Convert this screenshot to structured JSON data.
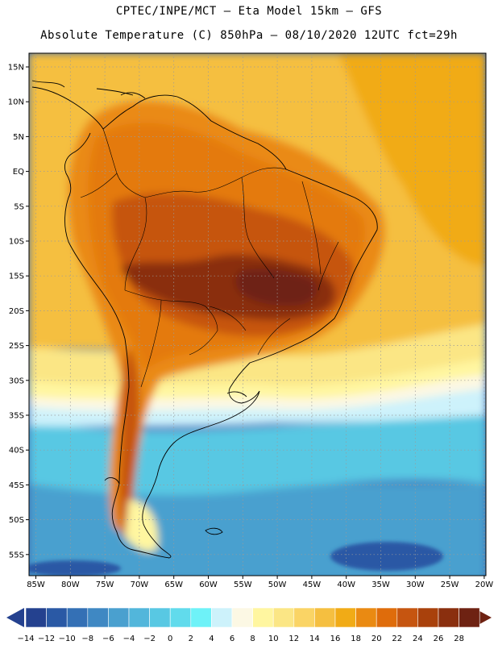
{
  "header": {
    "line1": "CPTEC/INPE/MCT –  Eta Model 15km – GFS",
    "line2": "Absolute Temperature (C) 850hPa – 08/10/2020 12UTC fct=29h"
  },
  "axes": {
    "lat_labels": [
      "15N",
      "10N",
      "5N",
      "EQ",
      "5S",
      "10S",
      "15S",
      "20S",
      "25S",
      "30S",
      "35S",
      "40S",
      "45S",
      "50S",
      "55S"
    ],
    "lon_labels": [
      "85W",
      "80W",
      "75W",
      "70W",
      "65W",
      "60W",
      "55W",
      "50W",
      "45W",
      "40W",
      "35W",
      "30W",
      "25W",
      "20W"
    ]
  },
  "colorbar": {
    "labels": [
      "-14",
      "-12",
      "-10",
      "-8",
      "-6",
      "-4",
      "-2",
      "0",
      "2",
      "4",
      "6",
      "8",
      "10",
      "12",
      "14",
      "16",
      "18",
      "20",
      "22",
      "24",
      "26",
      "28"
    ],
    "colors": [
      "#24418f",
      "#2a59a5",
      "#3470b5",
      "#3f88c3",
      "#4aa0cf",
      "#52b6db",
      "#58c8e3",
      "#61dbec",
      "#6ef2f8",
      "#cdf2fb",
      "#fcf8e4",
      "#fff6a0",
      "#fbe685",
      "#fad465",
      "#f5bf40",
      "#f1ab16",
      "#ea8a12",
      "#df6c0b",
      "#c65510",
      "#a9410c",
      "#8a2f0e",
      "#6e2212"
    ]
  },
  "colors": {
    "deep_ocean": "#3e6cb4",
    "mid_ocean": "#4aa0cf",
    "light_ocean": "#58c8e3",
    "front": "#cdf2fb",
    "cream": "#fcf8e4",
    "pale_yellow": "#fff6a0",
    "yellow": "#fbe685",
    "gold": "#f5bf40",
    "orange": "#f1ab16",
    "dark_orange": "#ea8a12",
    "rust": "#c65510",
    "brown": "#8a2f0e",
    "dark_brown": "#6e2212"
  }
}
